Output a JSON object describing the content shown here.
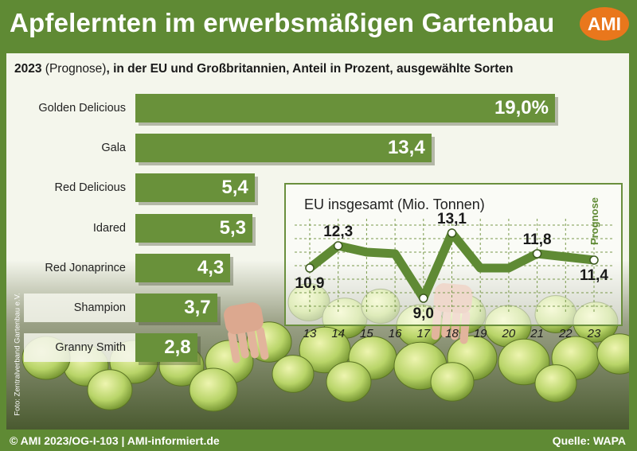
{
  "header": {
    "title": "Apfelernten im erwerbsmäßigen Gartenbau",
    "logo_text": "AMI",
    "subtitle_year": "2023",
    "subtitle_rest": " (Prognose)",
    "subtitle_tail": ", in der EU und Großbritannien, Anteil in Prozent, ausgewählte Sorten"
  },
  "photo_credit": "Foto: Zentralverband Gartenbau e.V.",
  "footer": {
    "left": "© AMI 2023/OG-I-103 | AMI-informiert.de",
    "right": "Quelle: WAPA"
  },
  "colors": {
    "background": "#5f8a34",
    "bar": "#69913a",
    "logo": "#e9771c",
    "line": "#5f8a34"
  },
  "chart_data": [
    {
      "type": "bar",
      "orientation": "horizontal",
      "categories": [
        "Golden Delicious",
        "Gala",
        "Red Delicious",
        "Idared",
        "Red Jonaprince",
        "Shampion",
        "Granny Smith"
      ],
      "values": [
        19.0,
        13.4,
        5.4,
        5.3,
        4.3,
        3.7,
        2.8
      ],
      "value_labels": [
        "19,0%",
        "13,4",
        "5,4",
        "5,3",
        "4,3",
        "3,7",
        "2,8"
      ],
      "unit": "Prozent"
    },
    {
      "type": "line",
      "title": "EU insgesamt (Mio. Tonnen)",
      "x": [
        "13",
        "14",
        "15",
        "16",
        "17",
        "18",
        "19",
        "20",
        "21",
        "22",
        "23"
      ],
      "y": [
        10.9,
        12.3,
        11.9,
        11.8,
        9.0,
        13.1,
        10.9,
        10.9,
        11.8,
        11.6,
        11.4
      ],
      "labeled_points": [
        {
          "x": "13",
          "label": "10,9"
        },
        {
          "x": "14",
          "label": "12,3"
        },
        {
          "x": "17",
          "label": "9,0"
        },
        {
          "x": "18",
          "label": "13,1"
        },
        {
          "x": "21",
          "label": "11,8"
        },
        {
          "x": "23",
          "label": "11,4"
        }
      ],
      "forecast_label": "Prognose",
      "grid": true
    }
  ]
}
